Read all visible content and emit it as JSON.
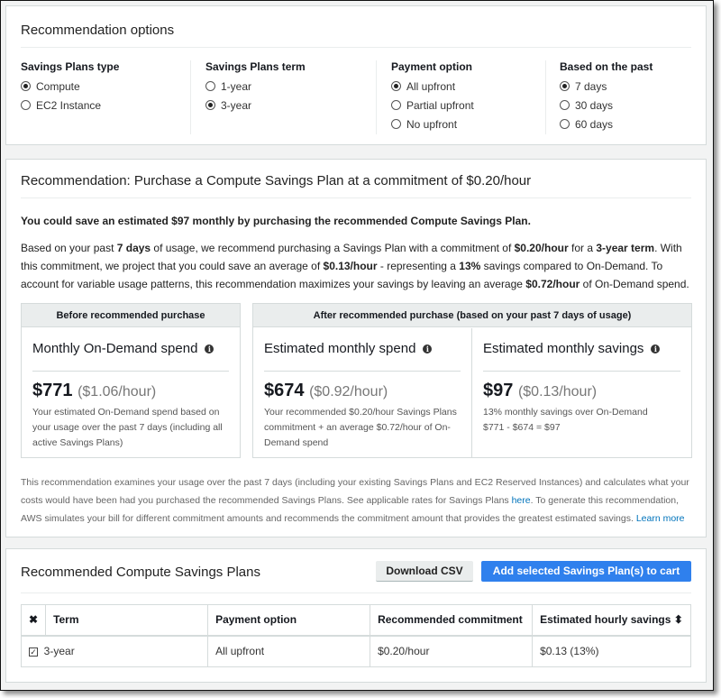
{
  "options": {
    "title": "Recommendation options",
    "groups": [
      {
        "label": "Savings Plans type",
        "items": [
          {
            "label": "Compute",
            "selected": true
          },
          {
            "label": "EC2 Instance",
            "selected": false
          }
        ]
      },
      {
        "label": "Savings Plans term",
        "items": [
          {
            "label": "1-year",
            "selected": false
          },
          {
            "label": "3-year",
            "selected": true
          }
        ]
      },
      {
        "label": "Payment option",
        "items": [
          {
            "label": "All upfront",
            "selected": true
          },
          {
            "label": "Partial upfront",
            "selected": false
          },
          {
            "label": "No upfront",
            "selected": false
          }
        ]
      },
      {
        "label": "Based on the past",
        "items": [
          {
            "label": "7 days",
            "selected": true
          },
          {
            "label": "30 days",
            "selected": false
          },
          {
            "label": "60 days",
            "selected": false
          }
        ]
      }
    ]
  },
  "recommendation": {
    "title": "Recommendation: Purchase a Compute Savings Plan at a commitment of $0.20/hour",
    "headline": "You could save an estimated $97 monthly by purchasing the recommended Compute Savings Plan.",
    "body": [
      "Based on your past ",
      "7 days",
      " of usage, we recommend purchasing a Savings Plan with a commitment of ",
      "$0.20/hour",
      " for a ",
      "3-year term",
      ". With this commitment, we project that you could save an average of ",
      "$0.13/hour",
      " - representing a ",
      "13%",
      " savings compared to On-Demand. To account for variable usage patterns, this recommendation maximizes your savings by leaving an average ",
      "$0.72/hour",
      " of On-Demand spend."
    ],
    "before_header": "Before recommended purchase",
    "after_header": "After recommended purchase (based on your past 7 days of usage)",
    "cards": [
      {
        "title": "Monthly On-Demand spend",
        "amount": "$771",
        "rate": "($1.06/hour)",
        "desc": "Your estimated On-Demand spend based on your usage over the past 7 days (including all active Savings Plans)"
      },
      {
        "title": "Estimated monthly spend",
        "amount": "$674",
        "rate": "($0.92/hour)",
        "desc": "Your recommended $0.20/hour Savings Plans commitment + an average $0.72/hour of On-Demand spend"
      },
      {
        "title": "Estimated monthly savings",
        "amount": "$97",
        "rate": "($0.13/hour)",
        "desc": "13% monthly savings over On-Demand",
        "desc2": "$771 - $674 = $97"
      }
    ],
    "footer": [
      "This recommendation examines your usage over the past 7 days (including your existing Savings Plans and EC2 Reserved Instances) and calculates what your costs would have been had you purchased the recommended Savings Plans. See applicable rates for Savings Plans ",
      "here",
      ". To generate this recommendation, AWS simulates your bill for different commitment amounts and recommends the commitment amount that provides the greatest estimated savings. ",
      "Learn more"
    ]
  },
  "plans": {
    "title": "Recommended Compute Savings Plans",
    "download": "Download CSV",
    "add": "Add selected Savings Plan(s) to cart",
    "columns": [
      "Term",
      "Payment option",
      "Recommended commitment",
      "Estimated hourly savings"
    ],
    "rows": [
      {
        "selected": true,
        "term": "3-year",
        "payment": "All upfront",
        "commitment": "$0.20/hour",
        "savings": "$0.13 (13%)"
      }
    ]
  },
  "colors": {
    "primary": "#0073bb",
    "button_blue": "#2f80ed"
  }
}
